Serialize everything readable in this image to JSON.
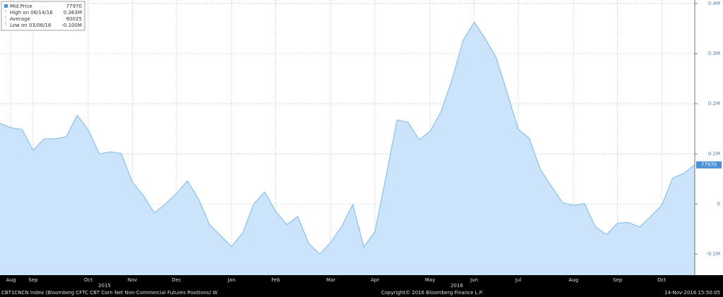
{
  "chart_data": {
    "type": "area",
    "categories": [
      null,
      "Aug",
      null,
      "Sep",
      null,
      null,
      null,
      null,
      "Oct",
      null,
      null,
      null,
      "Nov",
      null,
      null,
      null,
      "Dec",
      null,
      null,
      null,
      null,
      "Jan",
      null,
      null,
      null,
      "Feb",
      null,
      null,
      null,
      null,
      "Mar",
      null,
      null,
      null,
      "Apr",
      null,
      null,
      null,
      null,
      "May",
      null,
      null,
      null,
      "Jun",
      null,
      null,
      null,
      "Jul",
      null,
      null,
      null,
      null,
      "Aug",
      null,
      null,
      null,
      "Sep",
      null,
      null,
      null,
      "Oct",
      null,
      null,
      null
    ],
    "series": [
      {
        "name": "Mid Price",
        "color": "#7ab9ee",
        "fill": "#cbe4fb",
        "values": [
          161000,
          152000,
          149000,
          107000,
          130000,
          130000,
          134000,
          177000,
          148000,
          100000,
          104000,
          101000,
          44000,
          17000,
          -18000,
          0,
          21000,
          46000,
          10000,
          -41000,
          -63000,
          -85000,
          -58000,
          0,
          24000,
          -15000,
          -41000,
          -25000,
          -79000,
          -100000,
          -76000,
          -44000,
          -1000,
          -86000,
          -55000,
          55000,
          168000,
          163000,
          128000,
          145000,
          185000,
          249000,
          327000,
          363000,
          330000,
          292000,
          221000,
          149000,
          131000,
          69000,
          35000,
          3000,
          -3000,
          1000,
          -46000,
          -61000,
          -38000,
          -37000,
          -46000,
          -25000,
          -3000,
          52000,
          61000,
          77970
        ]
      }
    ],
    "stats": [
      {
        "label": "High on 06/14/16",
        "value": 363000,
        "value_label": "0.363M"
      },
      {
        "label": "Average",
        "value": 60025
      },
      {
        "label": "Low on 03/08/16",
        "value": -100000,
        "value_label": "-0.100M"
      }
    ],
    "years": [
      "2015",
      "2016"
    ],
    "ylim": [
      -142000,
      407000
    ],
    "yticks": [
      {
        "value": -100000,
        "label": "-0.1M"
      },
      0,
      {
        "value": 100000,
        "label": "0.1M"
      },
      {
        "value": 200000,
        "label": "0.2M"
      },
      {
        "value": 300000,
        "label": "0.3M"
      },
      {
        "value": 400000,
        "label": "0.4M"
      }
    ],
    "grid": true,
    "footer_left": "CBT1CNCN Index (Bloomberg CFTC CBT Corn Net Non-Commercial Futures Positions)  W",
    "footer_center": "Copyright© 2016 Bloomberg Finance L.P.",
    "footer_right": "14-Nov-2016 15:50:05"
  }
}
